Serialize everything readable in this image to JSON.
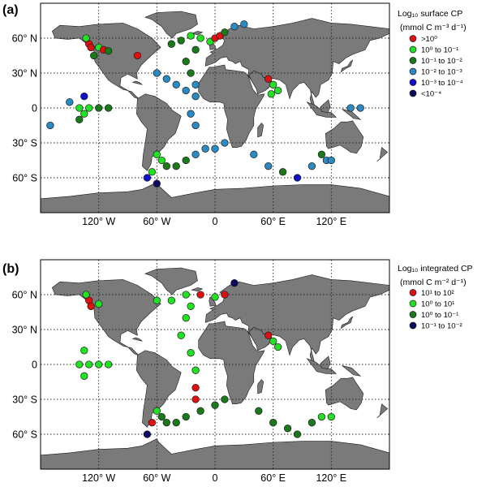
{
  "panels": [
    {
      "label": "(a)",
      "legend": {
        "title_line1": "Log₁₀ surface CP",
        "title_line2": "(mmol C m⁻³ d⁻¹)",
        "entries": [
          {
            "text": ">10⁰",
            "color": "#e01010"
          },
          {
            "text": "10⁰ to 10⁻¹",
            "color": "#22e022"
          },
          {
            "text": "10⁻¹ to 10⁻²",
            "color": "#1a7a1a"
          },
          {
            "text": "10⁻² to 10⁻³",
            "color": "#2a8ac4"
          },
          {
            "text": "10⁻³ to 10⁻⁴",
            "color": "#1010c8"
          },
          {
            "text": "<10⁻⁴",
            "color": "#0a0a60"
          }
        ]
      },
      "points": [
        {
          "lon": -130,
          "lat": 55,
          "cls": 0
        },
        {
          "lon": -128,
          "lat": 52,
          "cls": 0
        },
        {
          "lon": -133,
          "lat": 60,
          "cls": 1
        },
        {
          "lon": -120,
          "lat": 52,
          "cls": 1
        },
        {
          "lon": -115,
          "lat": 50,
          "cls": 0
        },
        {
          "lon": -110,
          "lat": 49,
          "cls": 2
        },
        {
          "lon": -125,
          "lat": 45,
          "cls": 2
        },
        {
          "lon": -80,
          "lat": 45,
          "cls": 0
        },
        {
          "lon": -140,
          "lat": 0,
          "cls": 1
        },
        {
          "lon": -130,
          "lat": 0,
          "cls": 1
        },
        {
          "lon": -120,
          "lat": 0,
          "cls": 2
        },
        {
          "lon": -110,
          "lat": 0,
          "cls": 2
        },
        {
          "lon": -135,
          "lat": -5,
          "cls": 1
        },
        {
          "lon": -140,
          "lat": -10,
          "cls": 2
        },
        {
          "lon": -135,
          "lat": 10,
          "cls": 4
        },
        {
          "lon": -150,
          "lat": 5,
          "cls": 3
        },
        {
          "lon": -170,
          "lat": -15,
          "cls": 3
        },
        {
          "lon": -60,
          "lat": 30,
          "cls": 3
        },
        {
          "lon": -50,
          "lat": 25,
          "cls": 3
        },
        {
          "lon": -40,
          "lat": 20,
          "cls": 3
        },
        {
          "lon": -30,
          "lat": 15,
          "cls": 3
        },
        {
          "lon": -20,
          "lat": 10,
          "cls": 3
        },
        {
          "lon": -45,
          "lat": 55,
          "cls": 2
        },
        {
          "lon": -35,
          "lat": 58,
          "cls": 2
        },
        {
          "lon": -25,
          "lat": 62,
          "cls": 1
        },
        {
          "lon": -15,
          "lat": 60,
          "cls": 1
        },
        {
          "lon": -5,
          "lat": 57,
          "cls": 1
        },
        {
          "lon": 0,
          "lat": 60,
          "cls": 0
        },
        {
          "lon": 5,
          "lat": 62,
          "cls": 0
        },
        {
          "lon": 10,
          "lat": 65,
          "cls": 2
        },
        {
          "lon": 20,
          "lat": 70,
          "cls": 3
        },
        {
          "lon": 30,
          "lat": 72,
          "cls": 3
        },
        {
          "lon": -20,
          "lat": 50,
          "cls": 2
        },
        {
          "lon": -30,
          "lat": 40,
          "cls": 2
        },
        {
          "lon": -25,
          "lat": 30,
          "cls": 2
        },
        {
          "lon": -20,
          "lat": 20,
          "cls": 3
        },
        {
          "lon": 55,
          "lat": 25,
          "cls": 0
        },
        {
          "lon": 60,
          "lat": 20,
          "cls": 1
        },
        {
          "lon": 65,
          "lat": 15,
          "cls": 1
        },
        {
          "lon": 58,
          "lat": 12,
          "cls": 1
        },
        {
          "lon": -60,
          "lat": -40,
          "cls": 1
        },
        {
          "lon": -55,
          "lat": -45,
          "cls": 1
        },
        {
          "lon": -50,
          "lat": -50,
          "cls": 2
        },
        {
          "lon": -65,
          "lat": -55,
          "cls": 1
        },
        {
          "lon": -70,
          "lat": -60,
          "cls": 4
        },
        {
          "lon": -60,
          "lat": -65,
          "cls": 5
        },
        {
          "lon": -40,
          "lat": -50,
          "cls": 2
        },
        {
          "lon": -30,
          "lat": -45,
          "cls": 2
        },
        {
          "lon": -20,
          "lat": -40,
          "cls": 3
        },
        {
          "lon": -10,
          "lat": -35,
          "cls": 3
        },
        {
          "lon": 0,
          "lat": -35,
          "cls": 3
        },
        {
          "lon": 10,
          "lat": -30,
          "cls": 3
        },
        {
          "lon": -20,
          "lat": -15,
          "cls": 3
        },
        {
          "lon": -25,
          "lat": -5,
          "cls": 3
        },
        {
          "lon": 40,
          "lat": -40,
          "cls": 3
        },
        {
          "lon": 55,
          "lat": -50,
          "cls": 3
        },
        {
          "lon": 70,
          "lat": -55,
          "cls": 2
        },
        {
          "lon": 85,
          "lat": -60,
          "cls": 4
        },
        {
          "lon": 100,
          "lat": -50,
          "cls": 3
        },
        {
          "lon": 110,
          "lat": -40,
          "cls": 2
        },
        {
          "lon": 115,
          "lat": -45,
          "cls": 3
        },
        {
          "lon": 120,
          "lat": -45,
          "cls": 3
        },
        {
          "lon": 140,
          "lat": 0,
          "cls": 3
        },
        {
          "lon": 150,
          "lat": 0,
          "cls": 3
        }
      ]
    },
    {
      "label": "(b)",
      "legend": {
        "title_line1": "Log₁₀ integrated CP",
        "title_line2": "(mmol C m⁻² d⁻¹)",
        "entries": [
          {
            "text": "10¹ to 10²",
            "color": "#e01010"
          },
          {
            "text": "10⁰ to 10¹",
            "color": "#22e022"
          },
          {
            "text": "10⁰ to 10⁻¹",
            "color": "#1a7a1a"
          },
          {
            "text": "10⁻¹ to 10⁻²",
            "color": "#0a0a60"
          }
        ]
      },
      "points": [
        {
          "lon": -130,
          "lat": 55,
          "cls": 0
        },
        {
          "lon": -128,
          "lat": 50,
          "cls": 0
        },
        {
          "lon": -133,
          "lat": 60,
          "cls": 1
        },
        {
          "lon": -120,
          "lat": 52,
          "cls": 1
        },
        {
          "lon": -140,
          "lat": 0,
          "cls": 1
        },
        {
          "lon": -130,
          "lat": 0,
          "cls": 1
        },
        {
          "lon": -120,
          "lat": 0,
          "cls": 1
        },
        {
          "lon": -110,
          "lat": 0,
          "cls": 1
        },
        {
          "lon": -135,
          "lat": -10,
          "cls": 1
        },
        {
          "lon": -135,
          "lat": 12,
          "cls": 1
        },
        {
          "lon": -60,
          "lat": 55,
          "cls": 1
        },
        {
          "lon": -45,
          "lat": 55,
          "cls": 1
        },
        {
          "lon": -30,
          "lat": 60,
          "cls": 1
        },
        {
          "lon": -15,
          "lat": 60,
          "cls": 0
        },
        {
          "lon": 0,
          "lat": 58,
          "cls": 1
        },
        {
          "lon": 10,
          "lat": 60,
          "cls": 0
        },
        {
          "lon": 20,
          "lat": 70,
          "cls": 3
        },
        {
          "lon": -25,
          "lat": 50,
          "cls": 1
        },
        {
          "lon": -30,
          "lat": 40,
          "cls": 1
        },
        {
          "lon": -35,
          "lat": 25,
          "cls": 1
        },
        {
          "lon": -25,
          "lat": 10,
          "cls": 1
        },
        {
          "lon": -20,
          "lat": -5,
          "cls": 1
        },
        {
          "lon": -20,
          "lat": -20,
          "cls": 0
        },
        {
          "lon": -20,
          "lat": -30,
          "cls": 0
        },
        {
          "lon": 55,
          "lat": 25,
          "cls": 0
        },
        {
          "lon": 60,
          "lat": 20,
          "cls": 1
        },
        {
          "lon": 65,
          "lat": 15,
          "cls": 1
        },
        {
          "lon": -60,
          "lat": -40,
          "cls": 1
        },
        {
          "lon": -55,
          "lat": -45,
          "cls": 2
        },
        {
          "lon": -50,
          "lat": -50,
          "cls": 2
        },
        {
          "lon": -65,
          "lat": -50,
          "cls": 0
        },
        {
          "lon": -70,
          "lat": -60,
          "cls": 3
        },
        {
          "lon": -40,
          "lat": -50,
          "cls": 2
        },
        {
          "lon": -30,
          "lat": -45,
          "cls": 2
        },
        {
          "lon": -15,
          "lat": -40,
          "cls": 2
        },
        {
          "lon": 0,
          "lat": -35,
          "cls": 2
        },
        {
          "lon": 10,
          "lat": -30,
          "cls": 2
        },
        {
          "lon": 45,
          "lat": -40,
          "cls": 2
        },
        {
          "lon": 60,
          "lat": -50,
          "cls": 2
        },
        {
          "lon": 75,
          "lat": -55,
          "cls": 2
        },
        {
          "lon": 85,
          "lat": -60,
          "cls": 2
        },
        {
          "lon": 100,
          "lat": -50,
          "cls": 2
        },
        {
          "lon": 110,
          "lat": -45,
          "cls": 1
        },
        {
          "lon": 120,
          "lat": -45,
          "cls": 1
        }
      ]
    }
  ],
  "axes": {
    "lat_ticks": [
      {
        "value": 60,
        "label": "60° N"
      },
      {
        "value": 30,
        "label": "30° N"
      },
      {
        "value": 0,
        "label": "0"
      },
      {
        "value": -30,
        "label": "30° S"
      },
      {
        "value": -60,
        "label": "60° S"
      }
    ],
    "lon_ticks": [
      {
        "value": -120,
        "label": "120° W"
      },
      {
        "value": -60,
        "label": "60° W"
      },
      {
        "value": 0,
        "label": "0"
      },
      {
        "value": 60,
        "label": "60° E"
      },
      {
        "value": 120,
        "label": "120° E"
      }
    ],
    "lon_range": [
      -180,
      180
    ],
    "lat_range": [
      -90,
      90
    ]
  },
  "colors": {
    "land": "#7a7a7a",
    "ocean": "#ffffff"
  }
}
